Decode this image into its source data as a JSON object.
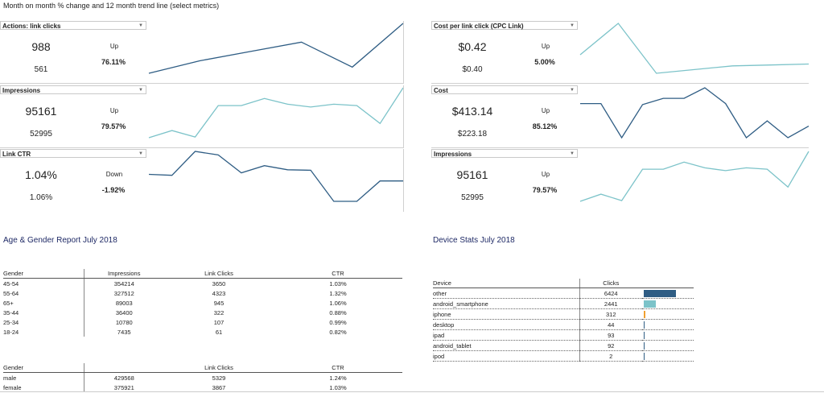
{
  "header": {
    "title": "Month on month % change and 12 month trend line (select metrics)"
  },
  "colors": {
    "dark": "#2f5d84",
    "light": "#7cc3c9",
    "accent_bar": "#f0a030",
    "title": "#1f2a66"
  },
  "panels": [
    {
      "metric": "Actions: link clicks",
      "current": "988",
      "previous": "561",
      "direction": "Up",
      "change": "76.11%",
      "color": "dark",
      "trend": [
        2,
        4,
        5.5,
        7,
        3,
        10
      ]
    },
    {
      "metric": "Cost per link click (CPC Link)",
      "current": "$0.42",
      "previous": "$0.40",
      "direction": "Up",
      "change": "5.00%",
      "color": "light",
      "trend": [
        0.3,
        0.47,
        0.2,
        0.22,
        0.24,
        0.245,
        0.25
      ]
    },
    {
      "metric": "Impressions",
      "current": "95161",
      "previous": "52995",
      "direction": "Up",
      "change": "79.57%",
      "color": "light",
      "trend": [
        30,
        40,
        31,
        75,
        75,
        85,
        77,
        73,
        77,
        75,
        50,
        100
      ]
    },
    {
      "metric": "Cost",
      "current": "$413.14",
      "previous": "$223.18",
      "direction": "Up",
      "change": "85.12%",
      "color": "dark",
      "trend": [
        70,
        70,
        5,
        68,
        80,
        80,
        100,
        70,
        5,
        37,
        5,
        27
      ]
    },
    {
      "metric": "Link CTR",
      "current": "1.04%",
      "previous": "1.06%",
      "direction": "Down",
      "change": "-1.92%",
      "color": "dark",
      "trend": [
        55,
        53,
        100,
        93,
        58,
        72,
        64,
        63,
        2,
        2,
        42,
        42
      ]
    },
    {
      "metric": "Impressions",
      "current": "95161",
      "previous": "52995",
      "direction": "Up",
      "change": "79.57%",
      "color": "light",
      "trend": [
        30,
        40,
        31,
        75,
        75,
        85,
        77,
        73,
        77,
        75,
        50,
        100
      ]
    }
  ],
  "age_gender": {
    "title": "Age & Gender Report July 2018",
    "columns": [
      "Gender",
      "Impressions",
      "Link Clicks",
      "CTR"
    ],
    "rows": [
      [
        "45-54",
        "354214",
        "3650",
        "1.03%"
      ],
      [
        "55-64",
        "327512",
        "4323",
        "1.32%"
      ],
      [
        "65+",
        "89003",
        "945",
        "1.06%"
      ],
      [
        "35-44",
        "36400",
        "322",
        "0.88%"
      ],
      [
        "25-34",
        "10780",
        "107",
        "0.99%"
      ],
      [
        "18-24",
        "7435",
        "61",
        "0.82%"
      ]
    ]
  },
  "gender": {
    "columns": [
      "Gender",
      "",
      "Link Clicks",
      "CTR"
    ],
    "rows": [
      [
        "male",
        "429568",
        "5329",
        "1.24%"
      ],
      [
        "female",
        "375921",
        "3867",
        "1.03%"
      ]
    ]
  },
  "device": {
    "title": "Device Stats July 2018",
    "columns": [
      "Device",
      "Clicks"
    ],
    "rows": [
      {
        "name": "other",
        "clicks": "6424",
        "value": 6424,
        "color": "dark"
      },
      {
        "name": "android_smartphone",
        "clicks": "2441",
        "value": 2441,
        "color": "light"
      },
      {
        "name": "iphone",
        "clicks": "312",
        "value": 312,
        "color": "accent_bar"
      },
      {
        "name": "desktop",
        "clicks": "44",
        "value": 44,
        "color": "dark"
      },
      {
        "name": "ipad",
        "clicks": "93",
        "value": 93,
        "color": "dark"
      },
      {
        "name": "android_tablet",
        "clicks": "92",
        "value": 92,
        "color": "dark"
      },
      {
        "name": "ipod",
        "clicks": "2",
        "value": 2,
        "color": "dark"
      }
    ]
  }
}
